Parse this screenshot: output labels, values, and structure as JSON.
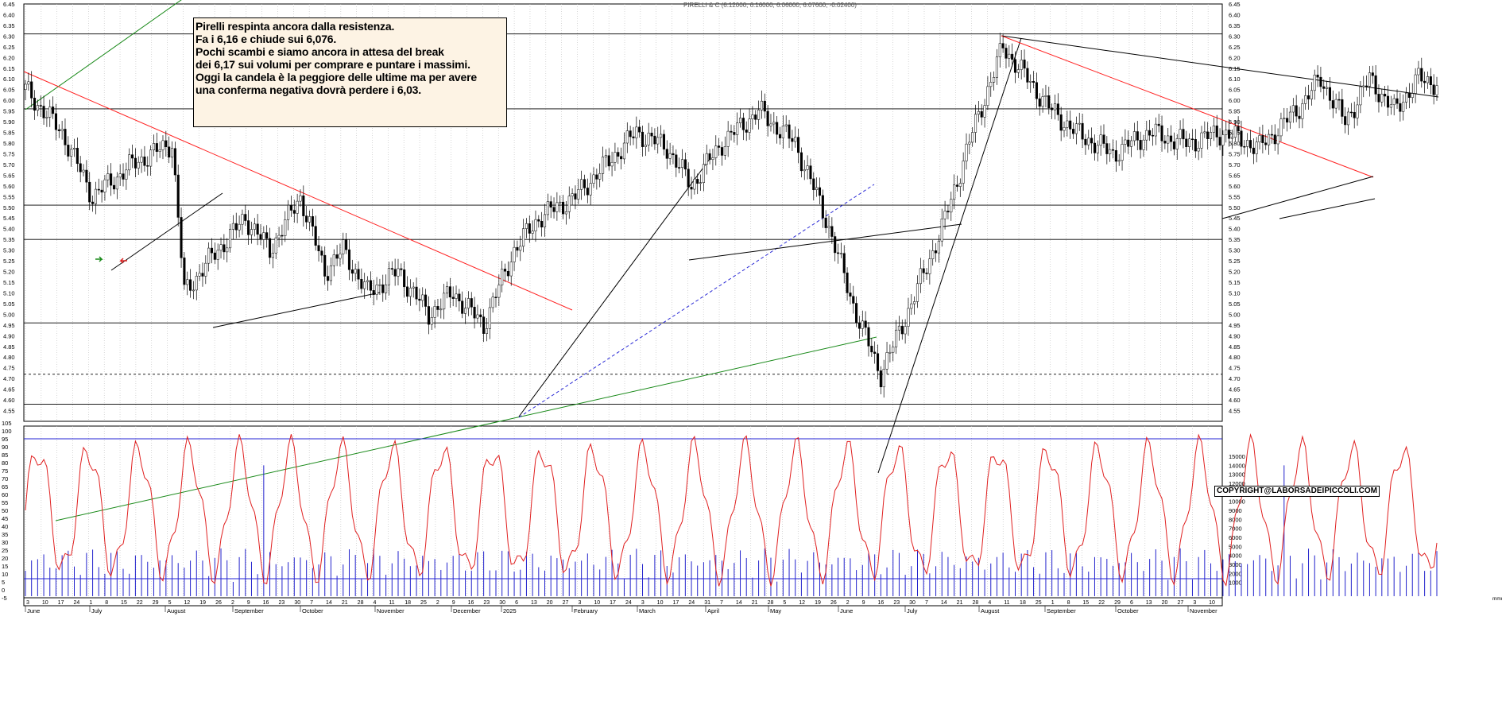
{
  "chart_data": [
    {
      "type": "candlestick",
      "title": "PIRELLI & C (6.12000, 6.16000, 6.06000, 6.07600, -0.02400)",
      "ylim": [
        4.5,
        6.45
      ],
      "y_ticks": [
        "6.45",
        "6.40",
        "6.35",
        "6.30",
        "6.25",
        "6.20",
        "6.15",
        "6.10",
        "6.05",
        "6.00",
        "5.95",
        "5.90",
        "5.85",
        "5.80",
        "5.75",
        "5.70",
        "5.65",
        "5.60",
        "5.55",
        "5.50",
        "5.45",
        "5.40",
        "5.35",
        "5.30",
        "5.25",
        "5.20",
        "5.15",
        "5.10",
        "5.05",
        "5.00",
        "4.95",
        "4.90",
        "4.85",
        "4.80",
        "4.75",
        "4.70",
        "4.65",
        "4.60",
        "4.55"
      ],
      "last_ohlc": {
        "open": 6.12,
        "high": 6.16,
        "low": 6.06,
        "close": 6.076,
        "change": -0.024
      },
      "horizontal_levels": [
        6.31,
        5.96,
        5.51,
        5.35,
        4.96,
        4.72,
        4.58
      ],
      "annotation_lines": [
        "Pirelli respinta ancora dalla resistenza.",
        "Fa i 6,16 e chiude sui 6,076.",
        "Pochi scambi e siamo ancora in attesa del break",
        "dei 6,17 sui volumi per comprare e puntare i massimi.",
        "Oggi la candela è la peggiore delle ultime  ma per avere",
        "una conferma negativa dovrà perdere i 6,03."
      ],
      "copyright": "COPYRIGHT@LABORSADEIPICCOLI.COM"
    },
    {
      "type": "line",
      "series": [
        {
          "values": "oscillator"
        },
        {
          "values": "volume"
        }
      ],
      "left_ticks": [
        "105",
        "100",
        "95",
        "90",
        "85",
        "80",
        "75",
        "70",
        "65",
        "60",
        "55",
        "50",
        "45",
        "40",
        "35",
        "30",
        "25",
        "20",
        "15",
        "10",
        "5",
        "0",
        "-5"
      ],
      "right_ticks": [
        "15000",
        "14000",
        "13000",
        "12000",
        "11000",
        "10000",
        "9000",
        "8000",
        "7000",
        "6000",
        "5000",
        "4000",
        "3000",
        "2000",
        "1000"
      ],
      "reference_levels": {
        "upper": 95,
        "lower": 7
      },
      "x_date_ticks": [
        "3",
        "10",
        "17",
        "24",
        "1",
        "8",
        "15",
        "22",
        "29",
        "5",
        "12",
        "19",
        "26",
        "2",
        "9",
        "16",
        "23",
        "30",
        "7",
        "14",
        "21",
        "28",
        "4",
        "11",
        "18",
        "25",
        "2",
        "9",
        "16",
        "23",
        "30",
        "6",
        "13",
        "20",
        "27",
        "3",
        "10",
        "17",
        "24",
        "3",
        "10",
        "17",
        "24",
        "31",
        "7",
        "14",
        "21",
        "28",
        "5",
        "12",
        "19",
        "26",
        "2",
        "9",
        "16",
        "23",
        "30",
        "7",
        "14",
        "21",
        "28",
        "4",
        "11",
        "18",
        "25",
        "1",
        "8",
        "15",
        "22",
        "29",
        "6",
        "13",
        "20",
        "27",
        "3",
        "10"
      ],
      "x_month_labels": [
        "June",
        "July",
        "August",
        "September",
        "October",
        "November",
        "December",
        "2025",
        "February",
        "March",
        "April",
        "May",
        "June",
        "July",
        "August",
        "September",
        "October",
        "November"
      ],
      "corner_label": "mmm"
    }
  ]
}
